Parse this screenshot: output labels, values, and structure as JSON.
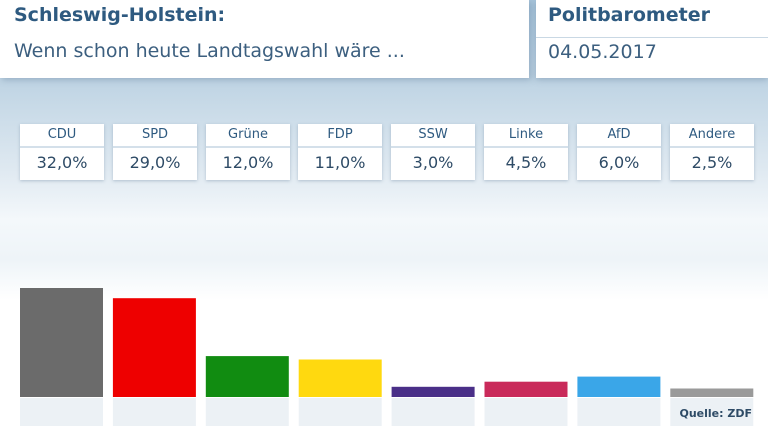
{
  "header": {
    "title": "Schleswig-Holstein:",
    "subtitle": "Wenn schon heute Landtagswahl wäre ...",
    "brand": "Politbarometer",
    "date": "04.05.2017"
  },
  "results": [
    {
      "party": "CDU",
      "label": "32,0%",
      "color": "#6b6b6b"
    },
    {
      "party": "SPD",
      "label": "29,0%",
      "color": "#ee0000"
    },
    {
      "party": "Grüne",
      "label": "12,0%",
      "color": "#118c11"
    },
    {
      "party": "FDP",
      "label": "11,0%",
      "color": "#ffd90f"
    },
    {
      "party": "SSW",
      "label": "3,0%",
      "color": "#4a2f88"
    },
    {
      "party": "Linke",
      "label": "4,5%",
      "color": "#c92a5a"
    },
    {
      "party": "AfD",
      "label": "6,0%",
      "color": "#3aa6e8"
    },
    {
      "party": "Andere",
      "label": "2,5%",
      "color": "#9a9a9a"
    }
  ],
  "source": "Quelle: ZDF",
  "chart_data": {
    "type": "bar",
    "title": "",
    "xlabel": "",
    "ylabel": "",
    "categories": [
      "CDU",
      "SPD",
      "Grüne",
      "FDP",
      "SSW",
      "Linke",
      "AfD",
      "Andere"
    ],
    "values": [
      32.0,
      29.0,
      12.0,
      11.0,
      3.0,
      4.5,
      6.0,
      2.5
    ],
    "colors": [
      "#6b6b6b",
      "#ee0000",
      "#118c11",
      "#ffd90f",
      "#4a2f88",
      "#c92a5a",
      "#3aa6e8",
      "#9a9a9a"
    ],
    "ylim": [
      0,
      32
    ],
    "grid": false,
    "legend": "none"
  }
}
